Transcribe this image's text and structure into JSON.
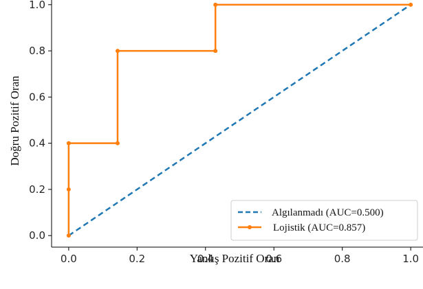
{
  "chart_data": {
    "type": "line",
    "title": "",
    "xlabel": "Yanlış Pozitif Oran",
    "ylabel": "Doğru Pozitif Oran",
    "xlim": [
      -0.05,
      1.05
    ],
    "ylim": [
      -0.05,
      1.05
    ],
    "xticks": [
      "0.0",
      "0.2",
      "0.4",
      "0.6",
      "0.8",
      "1.0"
    ],
    "yticks": [
      "0.0",
      "0.2",
      "0.4",
      "0.6",
      "0.8",
      "1.0"
    ],
    "grid": false,
    "legend_position": "bottom-right",
    "series": [
      {
        "name": "Algılanmadı (AUC=0.500)",
        "style": "dashed",
        "color": "#1f77b4",
        "x": [
          0.0,
          1.0
        ],
        "y": [
          0.0,
          1.0
        ]
      },
      {
        "name": "Lojistik (AUC=0.857)",
        "style": "solid-markers",
        "color": "#ff7f0e",
        "x": [
          0.0,
          0.0,
          0.0,
          0.143,
          0.143,
          0.429,
          0.429,
          1.0
        ],
        "y": [
          0.0,
          0.2,
          0.4,
          0.4,
          0.8,
          0.8,
          1.0,
          1.0
        ]
      }
    ]
  }
}
